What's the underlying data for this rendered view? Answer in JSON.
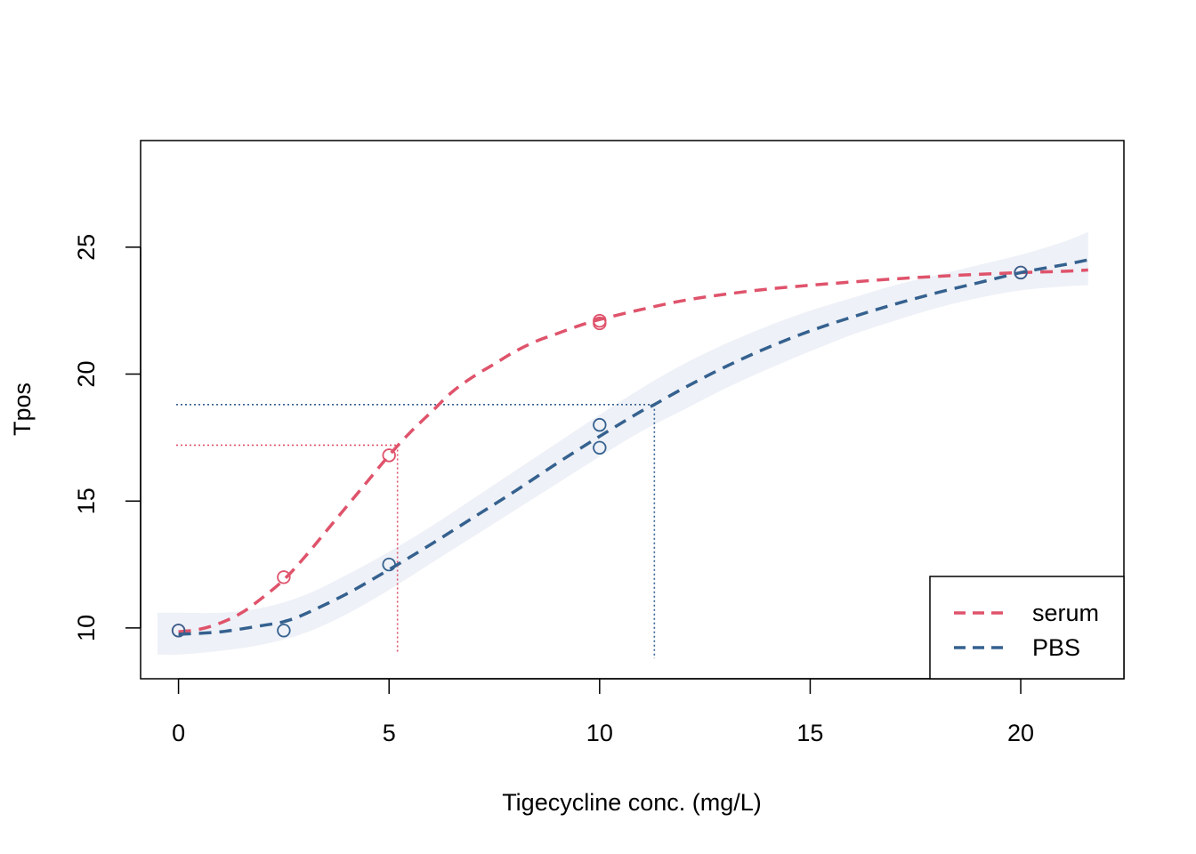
{
  "chart_data": {
    "type": "line",
    "title": "",
    "xlabel": "Tigecycline conc. (mg/L)",
    "ylabel": "Tpos",
    "xlim": [
      -0.9,
      22.45
    ],
    "ylim": [
      8.0,
      29.2
    ],
    "xticks": [
      0,
      5,
      10,
      15,
      20
    ],
    "yticks": [
      10,
      15,
      20,
      25
    ],
    "grid": false,
    "legend_position": "bottom-right",
    "colors": {
      "serum": "#df536b",
      "PBS": "#35618f",
      "band": "#eef1f7",
      "axis": "#000000"
    },
    "series": [
      {
        "name": "serum",
        "color": "#df536b",
        "line_style": "dashed",
        "points": [
          {
            "x": 0,
            "y": 9.9
          },
          {
            "x": 2.5,
            "y": 12.0
          },
          {
            "x": 5,
            "y": 16.8
          },
          {
            "x": 10,
            "y": 22.0
          },
          {
            "x": 10,
            "y": 22.1
          },
          {
            "x": 20,
            "y": 24.0
          }
        ],
        "fit": {
          "x": [
            0,
            0.5,
            1,
            1.5,
            2,
            2.5,
            3,
            3.5,
            4,
            4.5,
            5,
            5.5,
            6,
            6.5,
            7,
            7.5,
            8,
            8.5,
            9,
            9.5,
            10,
            11,
            12,
            13,
            14,
            15,
            16,
            17,
            18,
            19,
            20,
            21,
            21.6
          ],
          "y": [
            9.85,
            9.95,
            10.2,
            10.6,
            11.2,
            11.9,
            12.8,
            13.8,
            14.8,
            15.8,
            16.8,
            17.7,
            18.5,
            19.3,
            19.9,
            20.4,
            20.9,
            21.3,
            21.6,
            21.9,
            22.15,
            22.55,
            22.9,
            23.15,
            23.35,
            23.5,
            23.63,
            23.75,
            23.85,
            23.93,
            24.0,
            24.05,
            24.1
          ]
        },
        "reference": {
          "x": 5.2,
          "y": 17.2
        }
      },
      {
        "name": "PBS",
        "color": "#35618f",
        "line_style": "dashed",
        "points": [
          {
            "x": 0,
            "y": 9.9
          },
          {
            "x": 2.5,
            "y": 9.9
          },
          {
            "x": 5,
            "y": 12.5
          },
          {
            "x": 10,
            "y": 18.0
          },
          {
            "x": 10,
            "y": 17.1
          },
          {
            "x": 20,
            "y": 24.0
          }
        ],
        "fit": {
          "x": [
            0,
            1,
            2,
            2.5,
            3,
            4,
            5,
            6,
            7,
            8,
            9,
            10,
            11,
            11.3,
            12,
            13,
            14,
            15,
            16,
            17,
            18,
            19,
            20,
            21,
            21.6
          ],
          "y": [
            9.75,
            9.85,
            10.1,
            10.25,
            10.55,
            11.35,
            12.3,
            13.3,
            14.35,
            15.4,
            16.5,
            17.55,
            18.55,
            18.8,
            19.45,
            20.3,
            21.05,
            21.7,
            22.25,
            22.75,
            23.2,
            23.6,
            24.0,
            24.3,
            24.5
          ]
        },
        "band": {
          "x": [
            -0.5,
            0,
            1,
            2,
            3,
            4,
            5,
            6,
            7,
            8,
            9,
            10,
            11,
            12,
            13,
            14,
            15,
            16,
            17,
            18,
            19,
            20,
            21,
            21.6
          ],
          "upper": [
            10.6,
            10.6,
            10.6,
            10.8,
            11.3,
            12.1,
            13.0,
            14.0,
            15.1,
            16.2,
            17.3,
            18.4,
            19.45,
            20.4,
            21.2,
            21.9,
            22.5,
            23.0,
            23.5,
            23.9,
            24.3,
            24.7,
            25.2,
            25.6
          ],
          "lower": [
            8.95,
            8.95,
            9.1,
            9.35,
            9.8,
            10.55,
            11.5,
            12.55,
            13.6,
            14.65,
            15.7,
            16.75,
            17.75,
            18.6,
            19.45,
            20.2,
            20.9,
            21.55,
            22.1,
            22.6,
            23.0,
            23.3,
            23.45,
            23.5
          ]
        },
        "reference": {
          "x": 11.3,
          "y": 18.8
        }
      }
    ]
  }
}
